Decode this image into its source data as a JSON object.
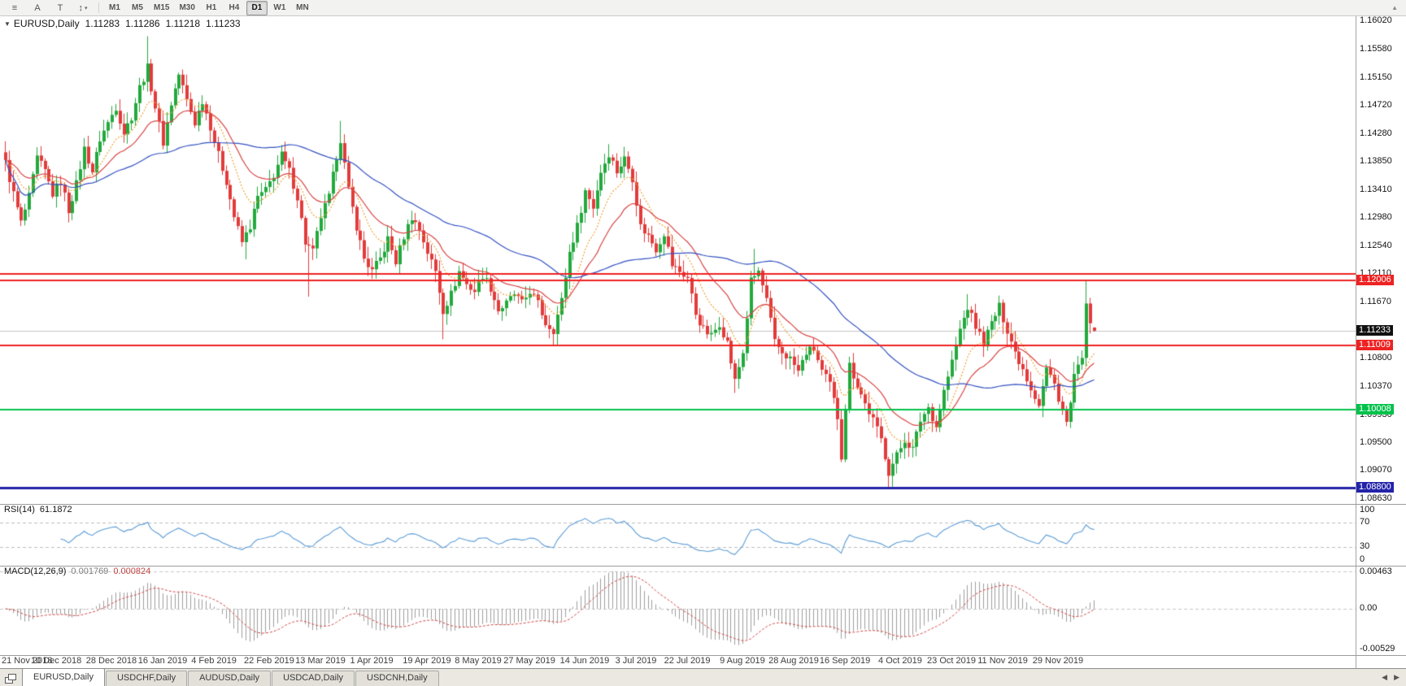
{
  "toolbar": {
    "tool_icons": [
      {
        "name": "menu-icon",
        "glyph": "≡"
      },
      {
        "name": "cursor-tool-button",
        "glyph": "A"
      },
      {
        "name": "text-tool-button",
        "glyph": "T"
      },
      {
        "name": "scale-tool-button",
        "glyph": "↕"
      }
    ],
    "dropdown_glyph": "▾",
    "timeframes": [
      "M1",
      "M5",
      "M15",
      "M30",
      "H1",
      "H4",
      "D1",
      "W1",
      "MN"
    ],
    "active_timeframe": "D1",
    "overflow_glyph": "▲"
  },
  "chart": {
    "collapse_glyph": "▼",
    "symbol_label": "EURUSD,Daily",
    "ohlc": {
      "open": "1.11283",
      "high": "1.11286",
      "low": "1.11218",
      "close": "1.11233"
    },
    "y_ticks": [
      "1.16020",
      "1.15580",
      "1.15150",
      "1.14720",
      "1.14280",
      "1.13850",
      "1.13410",
      "1.12980",
      "1.12540",
      "1.12110",
      "1.11670",
      "1.10800",
      "1.10370",
      "1.09930",
      "1.09500",
      "1.09070",
      "1.08630"
    ],
    "levels": [
      {
        "price": 1.12115,
        "color": "#ee2222",
        "width": 2,
        "label": ""
      },
      {
        "price": 1.12006,
        "color": "#ee2222",
        "width": 2,
        "label": "1.12006"
      },
      {
        "price": 1.11009,
        "color": "#ee2222",
        "width": 2,
        "label": "1.11009"
      },
      {
        "price": 1.10008,
        "color": "#00c24a",
        "width": 2,
        "label": "1.10008"
      },
      {
        "price": 1.088,
        "color": "#2323aa",
        "width": 3,
        "label": "1.08800"
      }
    ],
    "current_price": {
      "value": 1.11233,
      "label": "1.11233",
      "label_bg": "#111111",
      "line_color": "#c4c4c4"
    },
    "x_labels": [
      {
        "i": 0,
        "text": "21 Nov 2018"
      },
      {
        "i": 13,
        "text": "10 Dec 2018"
      },
      {
        "i": 27,
        "text": "28 Dec 2018"
      },
      {
        "i": 40,
        "text": "16 Jan 2019"
      },
      {
        "i": 53,
        "text": "4 Feb 2019"
      },
      {
        "i": 67,
        "text": "22 Feb 2019"
      },
      {
        "i": 80,
        "text": "13 Mar 2019"
      },
      {
        "i": 93,
        "text": "1 Apr 2019"
      },
      {
        "i": 107,
        "text": "19 Apr 2019"
      },
      {
        "i": 120,
        "text": "8 May 2019"
      },
      {
        "i": 133,
        "text": "27 May 2019"
      },
      {
        "i": 147,
        "text": "14 Jun 2019"
      },
      {
        "i": 160,
        "text": "3 Jul 2019"
      },
      {
        "i": 173,
        "text": "22 Jul 2019"
      },
      {
        "i": 187,
        "text": "9 Aug 2019"
      },
      {
        "i": 200,
        "text": "28 Aug 2019"
      },
      {
        "i": 213,
        "text": "16 Sep 2019"
      },
      {
        "i": 227,
        "text": "4 Oct 2019"
      },
      {
        "i": 240,
        "text": "23 Oct 2019"
      },
      {
        "i": 253,
        "text": "11 Nov 2019"
      },
      {
        "i": 267,
        "text": "29 Nov 2019"
      }
    ]
  },
  "chart_data": {
    "type": "candlestick",
    "symbol": "EURUSD",
    "timeframe": "Daily",
    "candle_count": 277,
    "up_color": "#23a93d",
    "down_color": "#e23b3b",
    "noise_amp": 0.0014,
    "wick_amp": 0.0022,
    "last_ohlc": [
      1.11283,
      1.11286,
      1.11218,
      1.11233
    ],
    "close_anchors": [
      [
        0,
        1.1383
      ],
      [
        2,
        1.1335
      ],
      [
        4,
        1.129
      ],
      [
        6,
        1.133
      ],
      [
        8,
        1.139
      ],
      [
        10,
        1.137
      ],
      [
        12,
        1.1335
      ],
      [
        14,
        1.1355
      ],
      [
        16,
        1.131
      ],
      [
        18,
        1.135
      ],
      [
        20,
        1.1405
      ],
      [
        22,
        1.137
      ],
      [
        24,
        1.142
      ],
      [
        26,
        1.1445
      ],
      [
        28,
        1.147
      ],
      [
        30,
        1.143
      ],
      [
        32,
        1.1455
      ],
      [
        34,
        1.15
      ],
      [
        36,
        1.153
      ],
      [
        38,
        1.147
      ],
      [
        40,
        1.1415
      ],
      [
        42,
        1.1475
      ],
      [
        44,
        1.152
      ],
      [
        46,
        1.148
      ],
      [
        48,
        1.1445
      ],
      [
        50,
        1.148
      ],
      [
        52,
        1.144
      ],
      [
        54,
        1.1395
      ],
      [
        56,
        1.1355
      ],
      [
        58,
        1.13
      ],
      [
        60,
        1.126
      ],
      [
        62,
        1.1285
      ],
      [
        64,
        1.133
      ],
      [
        66,
        1.134
      ],
      [
        68,
        1.1365
      ],
      [
        70,
        1.1395
      ],
      [
        72,
        1.137
      ],
      [
        74,
        1.133
      ],
      [
        76,
        1.126
      ],
      [
        78,
        1.1245
      ],
      [
        80,
        1.13
      ],
      [
        82,
        1.133
      ],
      [
        84,
        1.1395
      ],
      [
        85,
        1.142
      ],
      [
        87,
        1.134
      ],
      [
        89,
        1.1285
      ],
      [
        91,
        1.1235
      ],
      [
        93,
        1.1215
      ],
      [
        95,
        1.1235
      ],
      [
        97,
        1.1265
      ],
      [
        99,
        1.123
      ],
      [
        101,
        1.127
      ],
      [
        103,
        1.13
      ],
      [
        105,
        1.128
      ],
      [
        107,
        1.1245
      ],
      [
        109,
        1.1215
      ],
      [
        111,
        1.1155
      ],
      [
        113,
        1.118
      ],
      [
        115,
        1.1215
      ],
      [
        117,
        1.1195
      ],
      [
        119,
        1.1185
      ],
      [
        121,
        1.121
      ],
      [
        123,
        1.119
      ],
      [
        125,
        1.1155
      ],
      [
        127,
        1.1165
      ],
      [
        129,
        1.118
      ],
      [
        131,
        1.1165
      ],
      [
        133,
        1.1185
      ],
      [
        135,
        1.1165
      ],
      [
        137,
        1.1135
      ],
      [
        139,
        1.1125
      ],
      [
        141,
        1.117
      ],
      [
        143,
        1.1245
      ],
      [
        145,
        1.1285
      ],
      [
        147,
        1.134
      ],
      [
        149,
        1.1315
      ],
      [
        151,
        1.137
      ],
      [
        153,
        1.1398
      ],
      [
        155,
        1.137
      ],
      [
        157,
        1.139
      ],
      [
        159,
        1.136
      ],
      [
        161,
        1.1285
      ],
      [
        163,
        1.127
      ],
      [
        165,
        1.125
      ],
      [
        167,
        1.1275
      ],
      [
        169,
        1.1225
      ],
      [
        171,
        1.1215
      ],
      [
        173,
        1.1205
      ],
      [
        175,
        1.115
      ],
      [
        177,
        1.1125
      ],
      [
        179,
        1.1115
      ],
      [
        181,
        1.1135
      ],
      [
        183,
        1.1105
      ],
      [
        185,
        1.1045
      ],
      [
        187,
        1.109
      ],
      [
        189,
        1.12
      ],
      [
        191,
        1.1215
      ],
      [
        193,
        1.117
      ],
      [
        195,
        1.1105
      ],
      [
        197,
        1.109
      ],
      [
        199,
        1.108
      ],
      [
        201,
        1.106
      ],
      [
        203,
        1.109
      ],
      [
        205,
        1.1095
      ],
      [
        207,
        1.106
      ],
      [
        209,
        1.104
      ],
      [
        211,
        1.099
      ],
      [
        212,
        1.093
      ],
      [
        213,
        1.1005
      ],
      [
        214,
        1.107
      ],
      [
        216,
        1.104
      ],
      [
        218,
        1.101
      ],
      [
        220,
        1.0985
      ],
      [
        222,
        1.0955
      ],
      [
        224,
        1.0905
      ],
      [
        226,
        1.093
      ],
      [
        228,
        1.0955
      ],
      [
        230,
        1.094
      ],
      [
        232,
        1.0985
      ],
      [
        234,
        1.1005
      ],
      [
        236,
        1.0975
      ],
      [
        238,
        1.103
      ],
      [
        240,
        1.1075
      ],
      [
        242,
        1.1125
      ],
      [
        244,
        1.116
      ],
      [
        246,
        1.113
      ],
      [
        248,
        1.1105
      ],
      [
        250,
        1.1135
      ],
      [
        252,
        1.116
      ],
      [
        254,
        1.1125
      ],
      [
        256,
        1.109
      ],
      [
        258,
        1.1065
      ],
      [
        260,
        1.1035
      ],
      [
        262,
        1.101
      ],
      [
        264,
        1.1065
      ],
      [
        266,
        1.104
      ],
      [
        268,
        1.1
      ],
      [
        269,
        1.098
      ],
      [
        270,
        1.101
      ],
      [
        271,
        1.1055
      ],
      [
        272,
        1.1065
      ],
      [
        273,
        1.1075
      ],
      [
        274,
        1.1172
      ],
      [
        275,
        1.1128
      ],
      [
        276,
        1.11233
      ]
    ],
    "special_wicks": [
      {
        "i": 36,
        "high": 1.1579
      },
      {
        "i": 61,
        "low": 1.1234
      },
      {
        "i": 77,
        "low": 1.1176
      },
      {
        "i": 85,
        "high": 1.1448
      },
      {
        "i": 111,
        "low": 1.111
      },
      {
        "i": 153,
        "high": 1.1412
      },
      {
        "i": 185,
        "low": 1.1027
      },
      {
        "i": 190,
        "high": 1.125
      },
      {
        "i": 212,
        "low": 1.0926
      },
      {
        "i": 224,
        "low": 1.0879
      },
      {
        "i": 244,
        "high": 1.118
      },
      {
        "i": 274,
        "high": 1.12
      }
    ],
    "moving_averages": [
      {
        "type": "ema",
        "period": 10,
        "color": "#eda33b",
        "dash": [
          2,
          2
        ],
        "name": "fast-ma-orange"
      },
      {
        "type": "ema",
        "period": 21,
        "color": "#d94444",
        "dash": [],
        "name": "medium-ma-red"
      },
      {
        "type": "sma",
        "period": 55,
        "color": "#3351c2",
        "dash": [],
        "name": "slow-ma-blue"
      }
    ]
  },
  "rsi": {
    "name": "RSI(14)",
    "value": "61.1872",
    "period": 14,
    "line_color": "#5b9bd5",
    "levels": [
      70,
      30
    ],
    "scale_labels": [
      "100",
      "70",
      "30",
      "0"
    ],
    "scale_values": [
      100,
      70,
      30,
      0
    ]
  },
  "macd": {
    "name": "MACD(12,26,9)",
    "value_main": "0.001769",
    "value_signal": "0.000824",
    "fast": 12,
    "slow": 26,
    "signal": 9,
    "hist_color": "#9e9e9e",
    "signal_color": "#cf4545",
    "scale_labels": [
      {
        "v": 0.00463,
        "text": "0.00463"
      },
      {
        "v": 0,
        "text": "0.00"
      },
      {
        "v": -0.00529,
        "text": "-0.00529"
      }
    ]
  },
  "tabs": {
    "items": [
      {
        "label": "EURUSD,Daily",
        "active": true
      },
      {
        "label": "USDCHF,Daily",
        "active": false
      },
      {
        "label": "AUDUSD,Daily",
        "active": false
      },
      {
        "label": "USDCAD,Daily",
        "active": false
      },
      {
        "label": "USDCNH,Daily",
        "active": false
      }
    ],
    "nav_left": "◀",
    "nav_right": "▶"
  }
}
